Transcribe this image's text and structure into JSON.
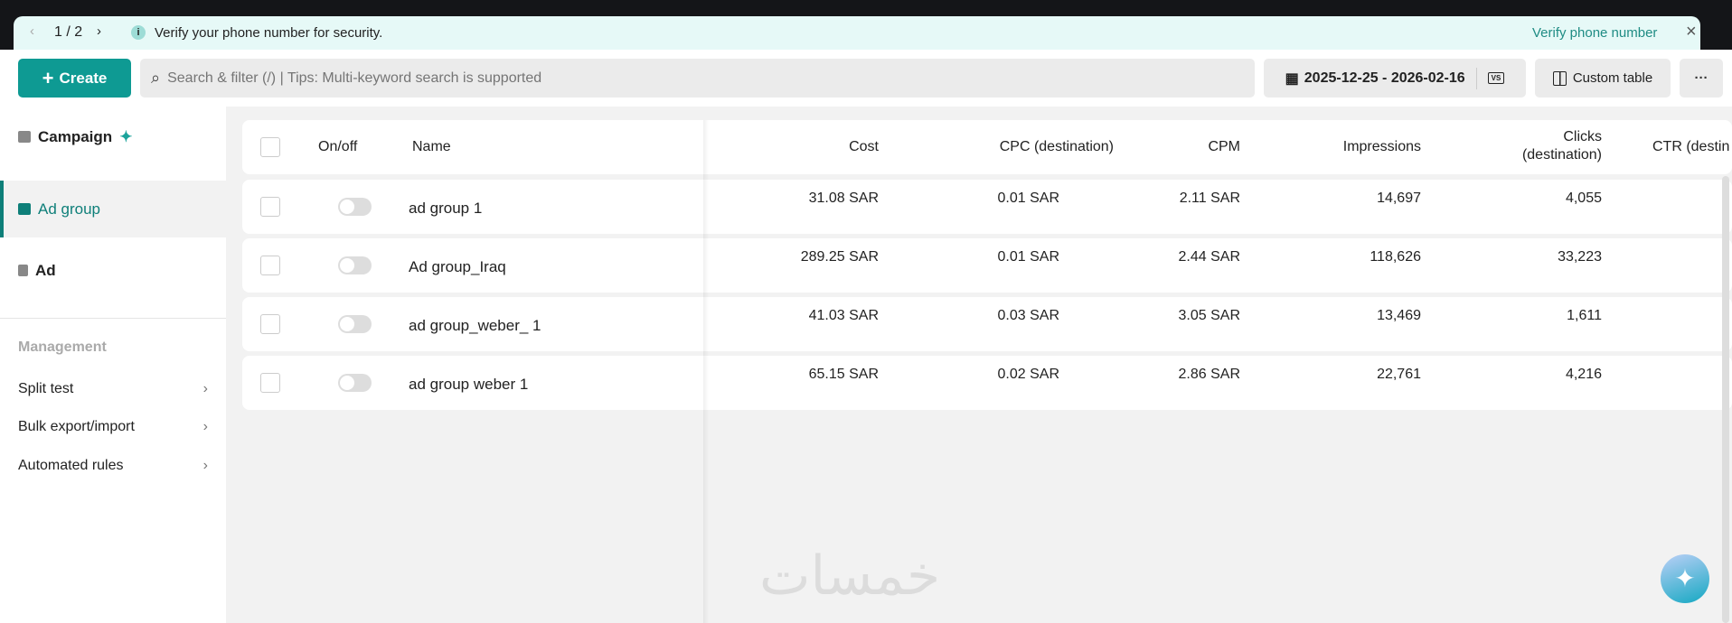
{
  "banner": {
    "pager": "1 / 2",
    "message": "Verify your phone number for security.",
    "action": "Verify phone number",
    "icons": [
      "chevron-left-icon",
      "chevron-right-icon",
      "info-icon",
      "close-icon"
    ]
  },
  "toolbar": {
    "create": "Create",
    "search_placeholder": "Search & filter (/) | Tips: Multi-keyword search is supported",
    "date_range": "2025-12-25 - 2026-02-16",
    "vs": "VS",
    "custom_table": "Custom table",
    "more": "···"
  },
  "sidebar": {
    "levels": [
      {
        "label": "Campaign"
      },
      {
        "label": "Ad group",
        "selected": true
      },
      {
        "label": "Ad"
      }
    ],
    "section": "Management",
    "tools": [
      {
        "label": "Split test"
      },
      {
        "label": "Bulk export/import"
      },
      {
        "label": "Automated rules"
      }
    ]
  },
  "table": {
    "headers": {
      "onoff": "On/off",
      "name": "Name",
      "cost": "Cost",
      "cpc": "CPC (destination)",
      "cpm": "CPM",
      "impressions": "Impressions",
      "clicks1": "Clicks",
      "clicks2": "(destination)",
      "ctr": "CTR (destin"
    },
    "rows": [
      {
        "on": false,
        "name": "ad group 1",
        "cost": "31.08 SAR",
        "cpc": "0.01 SAR",
        "cpm": "2.11 SAR",
        "impressions": "14,697",
        "clicks": "4,055"
      },
      {
        "on": false,
        "name": "Ad group_Iraq",
        "cost": "289.25 SAR",
        "cpc": "0.01 SAR",
        "cpm": "2.44 SAR",
        "impressions": "118,626",
        "clicks": "33,223"
      },
      {
        "on": false,
        "name": "ad group_weber_ 1",
        "cost": "41.03 SAR",
        "cpc": "0.03 SAR",
        "cpm": "3.05 SAR",
        "impressions": "13,469",
        "clicks": "1,611"
      },
      {
        "on": false,
        "name": "ad group weber 1",
        "cost": "65.15 SAR",
        "cpc": "0.02 SAR",
        "cpm": "2.86 SAR",
        "impressions": "22,761",
        "clicks": "4,216"
      }
    ]
  },
  "watermark": "خمسات",
  "colors": {
    "accent": "#0e9a93",
    "banner_bg": "#e6f9f7"
  }
}
